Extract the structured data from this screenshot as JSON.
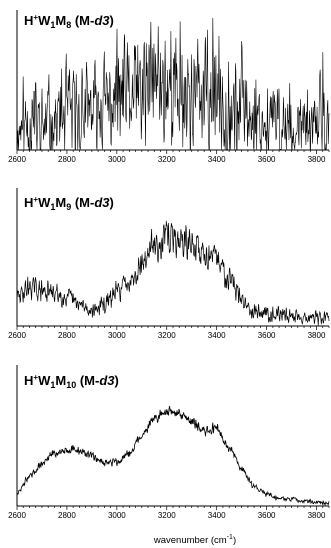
{
  "figure": {
    "xlabel": "wavenumber (cm⁻¹)",
    "xlabel_parts": {
      "base": "wavenumber (cm",
      "sup": "-1",
      "close": ")"
    }
  },
  "chart_data": [
    {
      "type": "line",
      "title": "H+W1M8 (M-d3)",
      "title_parts": {
        "H": "H",
        "plus": "+",
        "W": "W",
        "w_sub": "1",
        "M": "M",
        "m_sub": "8",
        "rest_open": " (M-",
        "d3": "d3",
        "rest_close": ")"
      },
      "xlim": [
        2600,
        3850
      ],
      "ylim": [
        0,
        1
      ],
      "xticks": [
        2600,
        2800,
        3000,
        3200,
        3400,
        3600,
        3800
      ],
      "xtick_labels": [
        "2600",
        "2800",
        "3000",
        "3200",
        "3400",
        "3600",
        "3800"
      ],
      "grid": false,
      "series": [
        {
          "x": [
            2600,
            2650,
            2700,
            2750,
            2800,
            2850,
            2900,
            2950,
            3000,
            3050,
            3100,
            3150,
            3200,
            3250,
            3300,
            3350,
            3400,
            3450,
            3500,
            3550,
            3600,
            3650,
            3700,
            3750,
            3800,
            3820,
            3840
          ],
          "y": [
            0.14,
            0.22,
            0.18,
            0.24,
            0.26,
            0.28,
            0.3,
            0.34,
            0.4,
            0.4,
            0.42,
            0.52,
            0.5,
            0.45,
            0.45,
            0.4,
            0.4,
            0.34,
            0.3,
            0.25,
            0.22,
            0.2,
            0.17,
            0.15,
            0.14,
            0.4,
            0.12
          ],
          "noise": 0.65,
          "color": "#000000"
        }
      ]
    },
    {
      "type": "line",
      "title": "H+W1M9 (M-d3)",
      "title_parts": {
        "H": "H",
        "plus": "+",
        "W": "W",
        "w_sub": "1",
        "M": "M",
        "m_sub": "9",
        "rest_open": " (M-",
        "d3": "d3",
        "rest_close": ")"
      },
      "xlim": [
        2600,
        3850
      ],
      "ylim": [
        0,
        1
      ],
      "xticks": [
        2600,
        2800,
        3000,
        3200,
        3400,
        3600,
        3800
      ],
      "xtick_labels": [
        "2600",
        "2800",
        "3000",
        "3200",
        "3400",
        "3600",
        "3800"
      ],
      "grid": false,
      "series": [
        {
          "x": [
            2600,
            2650,
            2700,
            2750,
            2800,
            2850,
            2900,
            2950,
            3000,
            3050,
            3100,
            3150,
            3200,
            3250,
            3300,
            3350,
            3400,
            3450,
            3500,
            3550,
            3600,
            3650,
            3700,
            3750,
            3800,
            3850
          ],
          "y": [
            0.22,
            0.3,
            0.27,
            0.25,
            0.22,
            0.16,
            0.12,
            0.16,
            0.26,
            0.36,
            0.48,
            0.62,
            0.68,
            0.66,
            0.62,
            0.56,
            0.5,
            0.38,
            0.2,
            0.12,
            0.1,
            0.09,
            0.08,
            0.07,
            0.06,
            0.06
          ],
          "noise": 0.16,
          "color": "#000000"
        }
      ]
    },
    {
      "type": "line",
      "title": "H+W1M10 (M-d3)",
      "title_parts": {
        "H": "H",
        "plus": "+",
        "W": "W",
        "w_sub": "1",
        "M": "M",
        "m_sub": "10",
        "rest_open": " (M-",
        "d3": "d3",
        "rest_close": ")"
      },
      "xlim": [
        2600,
        3850
      ],
      "ylim": [
        0,
        1
      ],
      "xticks": [
        2600,
        2800,
        3000,
        3200,
        3400,
        3600,
        3800
      ],
      "xtick_labels": [
        "2600",
        "2800",
        "3000",
        "3200",
        "3400",
        "3600",
        "3800"
      ],
      "grid": false,
      "series": [
        {
          "x": [
            2600,
            2650,
            2700,
            2750,
            2800,
            2850,
            2900,
            2950,
            3000,
            3050,
            3100,
            3150,
            3200,
            3250,
            3300,
            3350,
            3400,
            3450,
            3500,
            3550,
            3600,
            3650,
            3700,
            3750,
            3800,
            3850
          ],
          "y": [
            0.1,
            0.22,
            0.32,
            0.4,
            0.43,
            0.42,
            0.38,
            0.33,
            0.33,
            0.4,
            0.54,
            0.66,
            0.72,
            0.7,
            0.65,
            0.56,
            0.6,
            0.44,
            0.28,
            0.15,
            0.09,
            0.06,
            0.05,
            0.04,
            0.03,
            0.02
          ],
          "noise": 0.05,
          "color": "#000000"
        }
      ]
    }
  ]
}
